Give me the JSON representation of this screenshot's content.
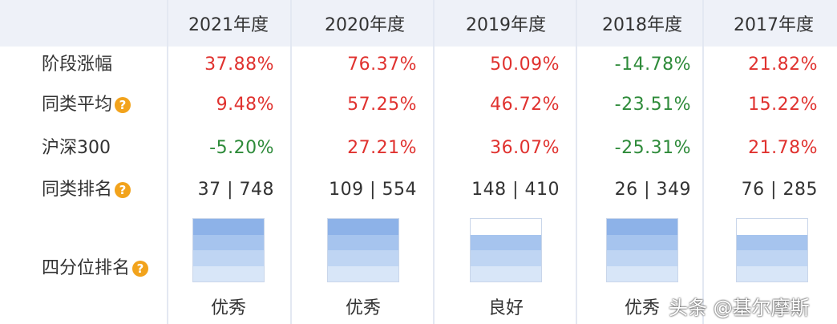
{
  "years": [
    "2021年度",
    "2020年度",
    "2019年度",
    "2018年度",
    "2017年度"
  ],
  "rows": [
    {
      "label": "阶段涨幅",
      "help": false,
      "values": [
        "37.88%",
        "76.37%",
        "50.09%",
        "-14.78%",
        "21.82%"
      ]
    },
    {
      "label": "同类平均",
      "help": true,
      "values": [
        "9.48%",
        "57.25%",
        "46.72%",
        "-23.51%",
        "15.22%"
      ]
    },
    {
      "label": "沪深300",
      "help": false,
      "values": [
        "-5.20%",
        "27.21%",
        "36.07%",
        "-25.31%",
        "21.78%"
      ]
    }
  ],
  "rank_row": {
    "label": "同类排名",
    "help": true,
    "values": [
      "37 | 748",
      "109 | 554",
      "148 | 410",
      "26 | 349",
      "76 | 285"
    ]
  },
  "quartile_row": {
    "label": "四分位排名",
    "help": true,
    "levels": [
      4,
      4,
      3,
      4,
      3
    ],
    "labels": [
      "优秀",
      "优秀",
      "良好",
      "优秀",
      ""
    ]
  },
  "help_glyph": "?",
  "colors": {
    "positive": "#e0322f",
    "negative": "#2e8b3a",
    "quartile": [
      "#8db2e8",
      "#a6c4ee",
      "#bfd5f3",
      "#d8e6f8"
    ]
  },
  "watermark": "头条 @基尔摩斯"
}
